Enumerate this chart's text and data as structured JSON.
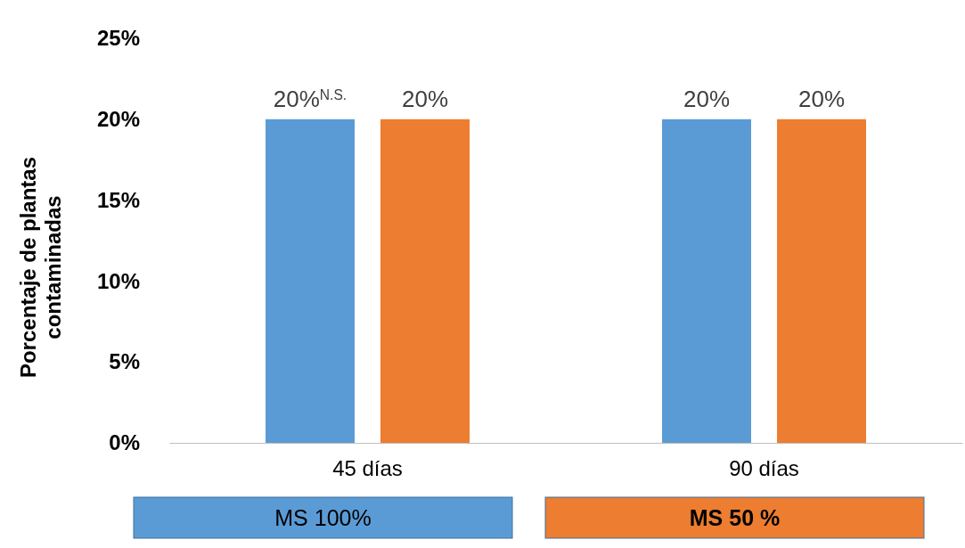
{
  "chart_data": {
    "type": "bar",
    "ylabel": "Porcentaje de plantas contaminadas",
    "categories": [
      "45 días",
      "90 días"
    ],
    "series": [
      {
        "name": "MS 100%",
        "color": "#5b9bd5",
        "values": [
          20,
          20
        ],
        "value_labels": [
          "20%$^{N.S.}$",
          "20%"
        ]
      },
      {
        "name": "MS 50 %",
        "color": "#ed7d31",
        "values": [
          20,
          20
        ],
        "value_labels": [
          "20%",
          "20%"
        ]
      }
    ],
    "ylim": [
      0,
      25
    ],
    "yticks": [
      {
        "value": 0,
        "label": "0%"
      },
      {
        "value": 5,
        "label": "5%"
      },
      {
        "value": 10,
        "label": "10%"
      },
      {
        "value": 15,
        "label": "15%"
      },
      {
        "value": 20,
        "label": "20%"
      },
      {
        "value": 25,
        "label": "25%"
      }
    ],
    "grid": false,
    "legend": "bottom"
  }
}
